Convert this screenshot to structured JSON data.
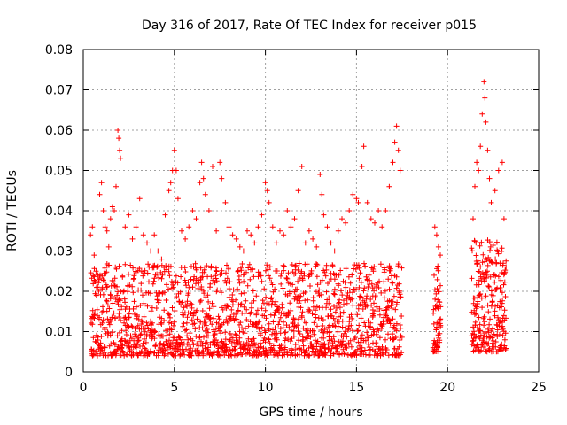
{
  "chart_data": {
    "type": "scatter",
    "title": "Day 316 of 2017, Rate Of TEC Index for receiver p015",
    "xlabel": "GPS time / hours",
    "ylabel": "ROTI / TECUs",
    "xlim": [
      0,
      25
    ],
    "ylim": [
      0,
      0.08
    ],
    "x_ticks": [
      0,
      5,
      10,
      15,
      20,
      25
    ],
    "x_tick_labels": [
      "0",
      "5",
      "10",
      "15",
      "20",
      "25"
    ],
    "y_ticks": [
      0,
      0.01,
      0.02,
      0.03,
      0.04,
      0.05,
      0.06,
      0.07,
      0.08
    ],
    "y_tick_labels": [
      "0",
      "0.01",
      "0.02",
      "0.03",
      "0.04",
      "0.05",
      "0.06",
      "0.07",
      "0.08"
    ],
    "grid": true,
    "marker": "plus",
    "color": "#ff0000",
    "series": [
      {
        "points": [
          [
            0.4,
            0.034
          ],
          [
            0.5,
            0.036
          ],
          [
            0.6,
            0.029
          ],
          [
            0.7,
            0.025
          ],
          [
            0.9,
            0.044
          ],
          [
            1.0,
            0.047
          ],
          [
            1.1,
            0.04
          ],
          [
            1.2,
            0.036
          ],
          [
            1.3,
            0.035
          ],
          [
            1.4,
            0.031
          ],
          [
            1.5,
            0.038
          ],
          [
            1.6,
            0.041
          ],
          [
            1.7,
            0.04
          ],
          [
            1.8,
            0.046
          ],
          [
            1.9,
            0.06
          ],
          [
            1.95,
            0.058
          ],
          [
            2.0,
            0.055
          ],
          [
            2.05,
            0.053
          ],
          [
            2.3,
            0.036
          ],
          [
            2.5,
            0.039
          ],
          [
            2.7,
            0.033
          ],
          [
            2.9,
            0.036
          ],
          [
            3.1,
            0.043
          ],
          [
            3.3,
            0.034
          ],
          [
            3.5,
            0.032
          ],
          [
            3.7,
            0.03
          ],
          [
            3.9,
            0.034
          ],
          [
            4.1,
            0.03
          ],
          [
            4.3,
            0.028
          ],
          [
            4.5,
            0.039
          ],
          [
            4.7,
            0.045
          ],
          [
            4.8,
            0.047
          ],
          [
            4.9,
            0.05
          ],
          [
            5.0,
            0.055
          ],
          [
            5.1,
            0.05
          ],
          [
            5.2,
            0.043
          ],
          [
            5.4,
            0.035
          ],
          [
            5.6,
            0.033
          ],
          [
            5.8,
            0.036
          ],
          [
            6.0,
            0.04
          ],
          [
            6.2,
            0.038
          ],
          [
            6.4,
            0.047
          ],
          [
            6.5,
            0.052
          ],
          [
            6.6,
            0.048
          ],
          [
            6.7,
            0.044
          ],
          [
            6.9,
            0.04
          ],
          [
            7.1,
            0.051
          ],
          [
            7.3,
            0.035
          ],
          [
            7.5,
            0.052
          ],
          [
            7.6,
            0.048
          ],
          [
            7.8,
            0.042
          ],
          [
            8.0,
            0.036
          ],
          [
            8.2,
            0.034
          ],
          [
            8.4,
            0.033
          ],
          [
            8.6,
            0.031
          ],
          [
            8.8,
            0.03
          ],
          [
            9.0,
            0.035
          ],
          [
            9.2,
            0.034
          ],
          [
            9.4,
            0.032
          ],
          [
            9.6,
            0.036
          ],
          [
            9.8,
            0.039
          ],
          [
            10.0,
            0.047
          ],
          [
            10.1,
            0.045
          ],
          [
            10.2,
            0.042
          ],
          [
            10.4,
            0.036
          ],
          [
            10.6,
            0.032
          ],
          [
            10.8,
            0.035
          ],
          [
            11.0,
            0.034
          ],
          [
            11.2,
            0.04
          ],
          [
            11.4,
            0.036
          ],
          [
            11.6,
            0.038
          ],
          [
            11.8,
            0.045
          ],
          [
            12.0,
            0.051
          ],
          [
            12.2,
            0.032
          ],
          [
            12.4,
            0.035
          ],
          [
            12.6,
            0.033
          ],
          [
            12.8,
            0.031
          ],
          [
            13.0,
            0.049
          ],
          [
            13.1,
            0.044
          ],
          [
            13.2,
            0.039
          ],
          [
            13.4,
            0.036
          ],
          [
            13.6,
            0.032
          ],
          [
            13.8,
            0.03
          ],
          [
            14.0,
            0.035
          ],
          [
            14.2,
            0.038
          ],
          [
            14.4,
            0.037
          ],
          [
            14.6,
            0.04
          ],
          [
            14.8,
            0.044
          ],
          [
            15.0,
            0.043
          ],
          [
            15.1,
            0.042
          ],
          [
            15.3,
            0.051
          ],
          [
            15.4,
            0.056
          ],
          [
            15.6,
            0.042
          ],
          [
            15.8,
            0.038
          ],
          [
            16.0,
            0.037
          ],
          [
            16.2,
            0.04
          ],
          [
            16.4,
            0.036
          ],
          [
            16.6,
            0.04
          ],
          [
            16.8,
            0.046
          ],
          [
            17.0,
            0.052
          ],
          [
            17.1,
            0.057
          ],
          [
            17.2,
            0.061
          ],
          [
            17.3,
            0.055
          ],
          [
            17.4,
            0.05
          ],
          [
            19.3,
            0.036
          ],
          [
            19.4,
            0.034
          ],
          [
            19.5,
            0.031
          ],
          [
            19.6,
            0.029
          ],
          [
            21.4,
            0.038
          ],
          [
            21.5,
            0.046
          ],
          [
            21.6,
            0.052
          ],
          [
            21.7,
            0.05
          ],
          [
            21.8,
            0.056
          ],
          [
            21.9,
            0.064
          ],
          [
            22.0,
            0.072
          ],
          [
            22.05,
            0.068
          ],
          [
            22.1,
            0.062
          ],
          [
            22.2,
            0.055
          ],
          [
            22.3,
            0.048
          ],
          [
            22.4,
            0.042
          ],
          [
            22.6,
            0.045
          ],
          [
            22.8,
            0.05
          ],
          [
            23.0,
            0.052
          ],
          [
            23.1,
            0.038
          ]
        ],
        "bands": [
          {
            "x0": 0.4,
            "x1": 17.5,
            "y_lo": 0.004,
            "y_hi": 0.027,
            "step": 0.05
          },
          {
            "x0": 19.2,
            "x1": 19.6,
            "y_lo": 0.005,
            "y_hi": 0.027,
            "step": 0.03
          },
          {
            "x0": 21.3,
            "x1": 23.2,
            "y_lo": 0.005,
            "y_hi": 0.033,
            "step": 0.04
          }
        ]
      }
    ]
  }
}
